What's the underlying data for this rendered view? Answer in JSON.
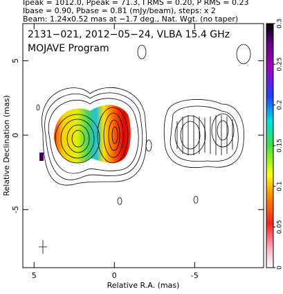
{
  "chart_data": {
    "type": "image",
    "header": [
      "Ipeak = 1012.0, Ppeak = 71.3, I RMS = 0.20, P RMS = 0.23",
      "Ibase = 0.90, Pbase = 0.81 (mJy/beam), steps: x 2",
      "Beam: 1.24x0.52 mas at −1.7 deg., Nat. Wgt. (no taper)"
    ],
    "annotations": [
      "2131−021, 2012−05−24, VLBA 15.4 GHz",
      "MOJAVE Program"
    ],
    "x_label": "Relative R.A. (mas)",
    "y_label": "Relative Declination (mas)",
    "xlim": [
      5.7,
      -9.3
    ],
    "ylim": [
      -8.9,
      7.5
    ],
    "xticks": [
      5,
      0,
      -5
    ],
    "yticks": [
      5,
      0,
      -5
    ],
    "colorbar": {
      "lim": [
        0,
        0.3
      ],
      "ticks": [
        0,
        0.05,
        0.1,
        0.15,
        0.2,
        0.25,
        0.3
      ]
    }
  }
}
